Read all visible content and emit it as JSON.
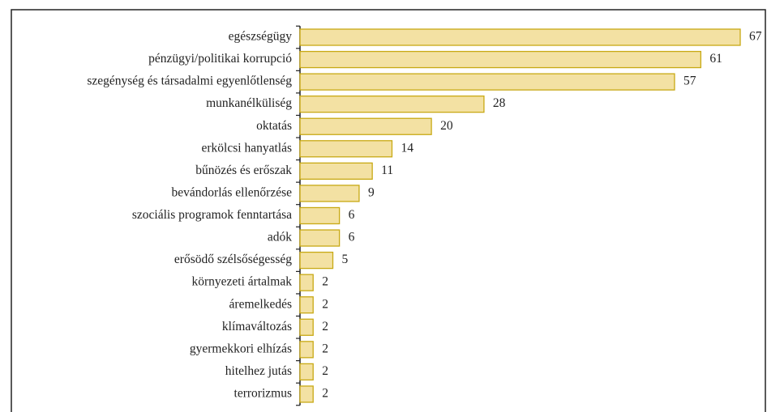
{
  "chart_data": {
    "type": "bar",
    "orientation": "horizontal",
    "categories": [
      "egészségügy",
      "pénzügyi/politikai korrupció",
      "szegénység és társadalmi egyenlőtlenség",
      "munkanélküliség",
      "oktatás",
      "erkölcsi hanyatlás",
      "bűnözés és erőszak",
      "bevándorlás ellenőrzése",
      "szociális programok fenntartása",
      "adók",
      "erősödő szélsőségesség",
      "környezeti ártalmak",
      "áremelkedés",
      "klímaváltozás",
      "gyermekkori elhízás",
      "hitelhez jutás",
      "terrorizmus"
    ],
    "values": [
      67,
      61,
      57,
      28,
      20,
      14,
      11,
      9,
      6,
      6,
      5,
      2,
      2,
      2,
      2,
      2,
      2
    ],
    "color": "#f3e1a3",
    "edge_color": "#c8a914"
  }
}
